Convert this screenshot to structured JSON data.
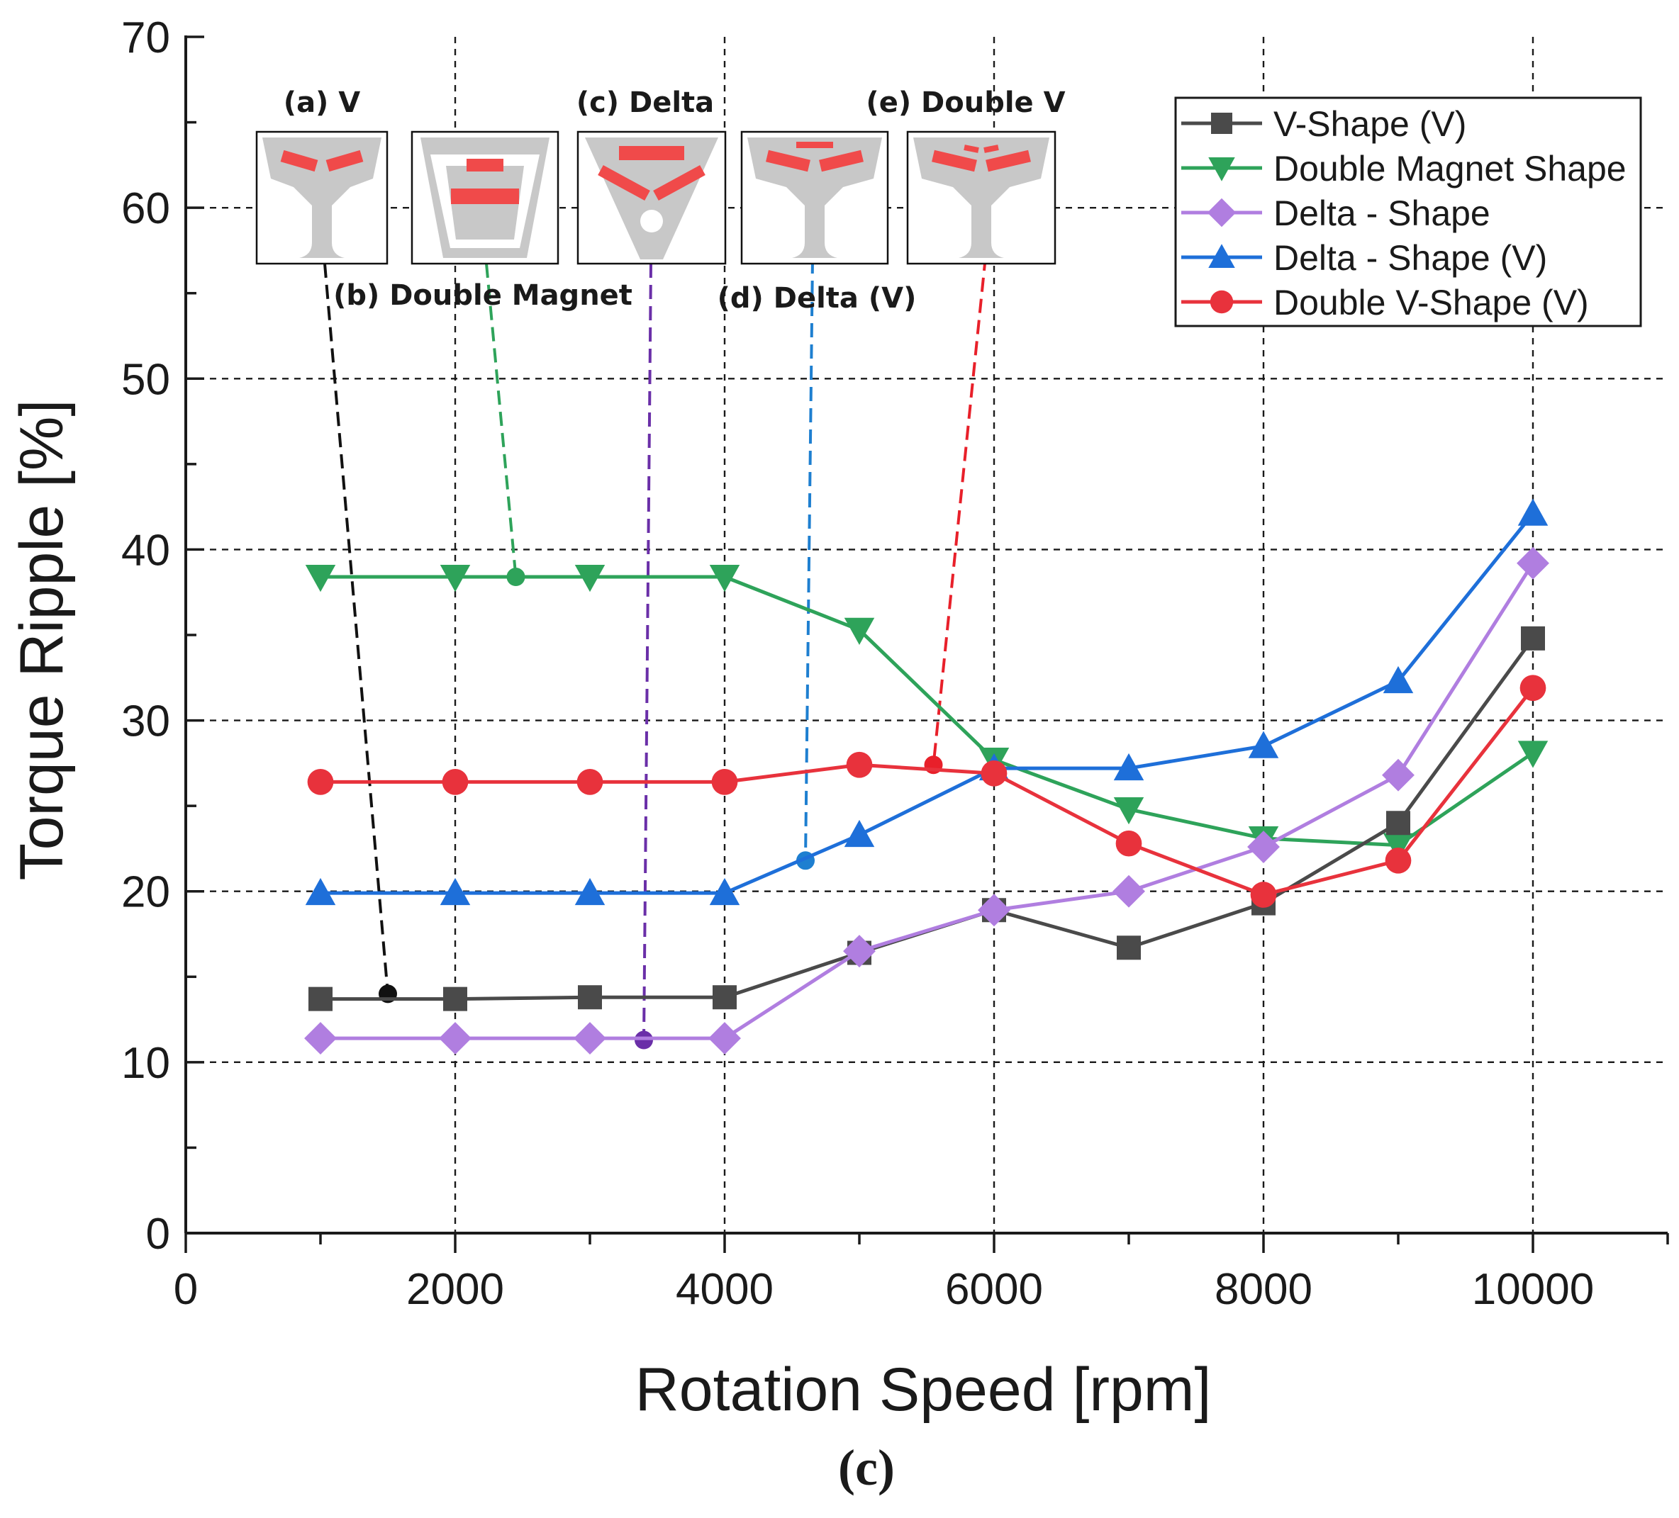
{
  "chart_data": {
    "type": "line",
    "xlabel": "Rotation Speed [rpm]",
    "ylabel": "Torque Ripple [%]",
    "xlim": [
      0,
      11000
    ],
    "ylim": [
      0,
      70
    ],
    "xticks": [
      0,
      2000,
      4000,
      6000,
      8000,
      10000
    ],
    "yticks": [
      0,
      10,
      20,
      30,
      40,
      50,
      60,
      70
    ],
    "grid": true,
    "legend_position": "top-right",
    "panel_label_open": "(",
    "panel_label_letter": "c",
    "panel_label_close": ")",
    "x": [
      1000,
      2000,
      3000,
      4000,
      5000,
      6000,
      7000,
      8000,
      9000,
      10000
    ],
    "series": [
      {
        "name": "V-Shape (V)",
        "color": "#4a4a4a",
        "marker": "square",
        "values": [
          13.7,
          13.7,
          13.8,
          13.8,
          16.4,
          18.9,
          16.7,
          19.3,
          24.0,
          34.8
        ]
      },
      {
        "name": "Double Magnet Shape",
        "color": "#2ea35a",
        "marker": "triangle-down",
        "values": [
          38.4,
          38.4,
          38.4,
          38.4,
          35.3,
          27.7,
          24.8,
          23.1,
          22.7,
          28.1
        ]
      },
      {
        "name": "Delta - Shape",
        "color": "#b07ee0",
        "marker": "diamond",
        "values": [
          11.4,
          11.4,
          11.4,
          11.4,
          16.5,
          18.9,
          20.0,
          22.6,
          26.8,
          39.2
        ]
      },
      {
        "name": "Delta - Shape (V)",
        "color": "#1e6fd9",
        "marker": "triangle-up",
        "values": [
          19.9,
          19.9,
          19.9,
          19.9,
          23.3,
          27.2,
          27.2,
          28.5,
          32.3,
          42.1
        ]
      },
      {
        "name": "Double V-Shape (V)",
        "color": "#e8323c",
        "marker": "circle",
        "values": [
          26.4,
          26.4,
          26.4,
          26.4,
          27.4,
          26.9,
          22.8,
          19.8,
          21.8,
          31.9
        ]
      }
    ],
    "insets": [
      {
        "label": "(a) V",
        "topology": "v",
        "color": "#111111",
        "anchor": [
          1500,
          14.0
        ]
      },
      {
        "label": "(b) Double Magnet",
        "topology": "double-magnet",
        "color": "#2ea35a",
        "anchor": [
          2450,
          38.4
        ]
      },
      {
        "label": "(c) Delta",
        "topology": "delta",
        "color": "#6a2fa8",
        "anchor": [
          3400,
          11.3
        ]
      },
      {
        "label": "(d) Delta (V)",
        "topology": "delta-v",
        "color": "#1e7fd0",
        "anchor": [
          4600,
          21.8
        ]
      },
      {
        "label": "(e) Double V",
        "topology": "double-v",
        "color": "#e8202a",
        "anchor": [
          5550,
          27.4
        ]
      }
    ]
  }
}
